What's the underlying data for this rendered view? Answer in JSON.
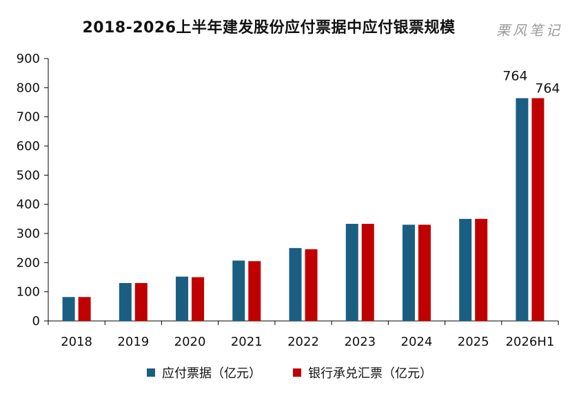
{
  "title": "2018-2026上半年建发股份应付票据中应付银票规模",
  "watermark": "栗风笔记",
  "colors": {
    "series1": "#1a5e82",
    "series2": "#c00000",
    "axis": "#000000"
  },
  "chart_data": {
    "type": "bar",
    "title": "2018-2026上半年建发股份应付票据中应付银票规模",
    "categories": [
      "2018",
      "2019",
      "2020",
      "2021",
      "2022",
      "2023",
      "2024",
      "2025",
      "2026H1"
    ],
    "series": [
      {
        "name": "应付票据（亿元）",
        "values": [
          82,
          130,
          152,
          207,
          250,
          333,
          330,
          350,
          764
        ]
      },
      {
        "name": "银行承兑汇票（亿元）",
        "values": [
          82,
          130,
          150,
          205,
          246,
          333,
          330,
          350,
          764
        ]
      }
    ],
    "data_labels": [
      {
        "series": 0,
        "index": 8,
        "text": "764"
      },
      {
        "series": 1,
        "index": 8,
        "text": "764"
      }
    ],
    "ylim": [
      0,
      900
    ],
    "yticks": [
      0,
      100,
      200,
      300,
      400,
      500,
      600,
      700,
      800,
      900
    ],
    "grid": false,
    "legend": "bottom",
    "xlabel": "",
    "ylabel": ""
  }
}
